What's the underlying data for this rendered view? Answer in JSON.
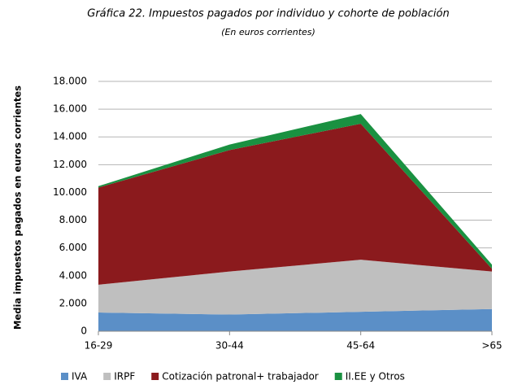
{
  "chart_data": {
    "type": "stacked_area",
    "title": "Gráfica 22. Impuestos pagados por individuo y cohorte de población",
    "subtitle": "(En euros corrientes)",
    "y_label": "Media impuestos pagados en euros corrientes",
    "categories": [
      "16-29",
      "30-44",
      "45-64",
      ">65"
    ],
    "series": [
      {
        "name": "IVA",
        "color": "#5b8fc7",
        "values": [
          1350,
          1200,
          1400,
          1600
        ]
      },
      {
        "name": "IRPF",
        "color": "#bfbfbf",
        "values": [
          2000,
          3100,
          3750,
          2700
        ]
      },
      {
        "name": "Cotización patronal+ trabajador",
        "color": "#8b1a1d",
        "values": [
          7000,
          8750,
          9800,
          200
        ]
      },
      {
        "name": "II.EE y Otros",
        "color": "#1a9141",
        "values": [
          100,
          400,
          700,
          300
        ]
      }
    ],
    "ylim": [
      0,
      18000
    ],
    "yticks": [
      0,
      {
        "value": 2000,
        "label": "2.000"
      },
      {
        "value": 4000,
        "label": "4.000"
      },
      {
        "value": 6000,
        "label": "6.000"
      },
      {
        "value": 8000,
        "label": "8.000"
      },
      {
        "value": 10000,
        "label": "10.000"
      },
      {
        "value": 12000,
        "label": "12.000"
      },
      {
        "value": 14000,
        "label": "14.000"
      },
      {
        "value": 16000,
        "label": "16.000"
      },
      {
        "value": 18000,
        "label": "18.000"
      }
    ],
    "grid": true,
    "legend": "bottom"
  }
}
